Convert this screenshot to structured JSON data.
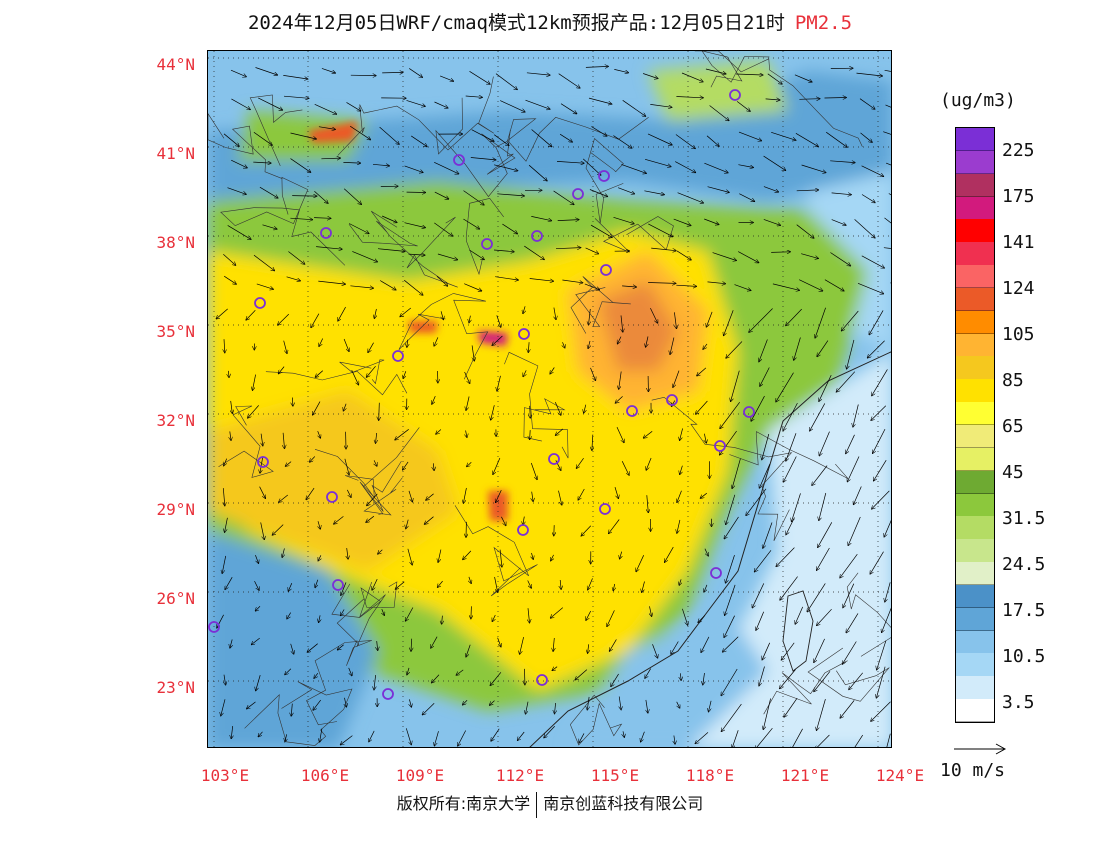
{
  "header": {
    "title": "2024年12月05日WRF/cmaq模式12km预报产品:12月05日21时",
    "species": "PM2.5"
  },
  "axes": {
    "lat_labels": [
      "44°N",
      "41°N",
      "38°N",
      "35°N",
      "32°N",
      "29°N",
      "26°N",
      "23°N"
    ],
    "lon_labels": [
      "103°E",
      "106°E",
      "109°E",
      "112°E",
      "115°E",
      "118°E",
      "121°E",
      "124°E"
    ]
  },
  "legend": {
    "unit": "(ug/m3)",
    "ticks": [
      "225",
      "175",
      "141",
      "124",
      "105",
      "85",
      "65",
      "45",
      "31.5",
      "24.5",
      "17.5",
      "10.5",
      "3.5"
    ],
    "colors": [
      "#7b2fd6",
      "#9b3ccf",
      "#b03060",
      "#d21a7d",
      "#ff0000",
      "#f03050",
      "#fa6464",
      "#eb5a28",
      "#ff8c00",
      "#ffb432",
      "#f5c81e",
      "#ffe100",
      "#ffff32",
      "#f0eb78",
      "#e6f064",
      "#6eaa32",
      "#8cc83c",
      "#b4dc64",
      "#c8e68c",
      "#e1f0c8",
      "#4b91c8",
      "#5fa5d7",
      "#87c3eb",
      "#a5d7f5",
      "#d2ebfa",
      "#ffffff"
    ],
    "wind_label": "10 m/s"
  },
  "map": {
    "background_colors": {
      "low": "#87c3eb",
      "mid": "#8cc83c",
      "high": "#ffe100",
      "peak": "#ffb432",
      "ocean": "#d2ebfa"
    },
    "station_marker_color": "#7b2fd6"
  },
  "footer": {
    "left": "版权所有:南京大学",
    "right": "南京创蓝科技有限公司"
  }
}
